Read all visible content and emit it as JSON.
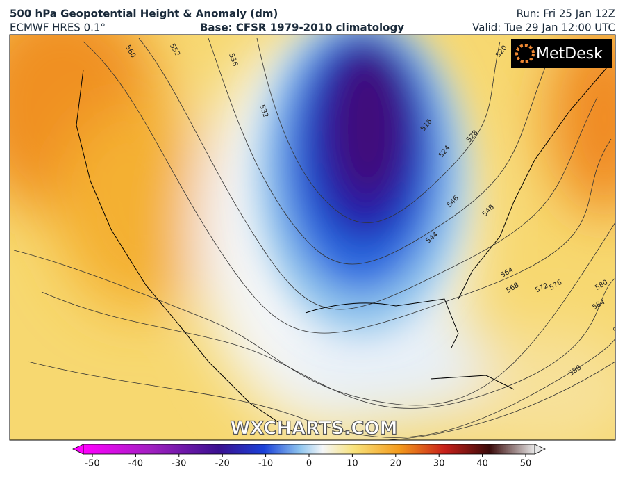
{
  "header": {
    "title": "500 hPa Geopotential Height & Anomaly (dm)",
    "model": "ECMWF HRES 0.1°",
    "base": "Base: CFSR 1979-2010 climatology",
    "run": "Run: Fri 25 Jan 12Z",
    "valid": "Valid: Tue 29 Jan 12:00 UTC"
  },
  "logo": "MetDesk",
  "watermark": "WXCHARTS.COM",
  "contour_labels": [
    "560",
    "552",
    "536",
    "532",
    "516",
    "524",
    "528",
    "520",
    "546",
    "548",
    "544",
    "564",
    "568",
    "572",
    "576",
    "580",
    "584",
    "588"
  ],
  "colorbar": {
    "range": [
      -50,
      50
    ],
    "ticks": [
      -50,
      -40,
      -30,
      -20,
      -10,
      0,
      10,
      20,
      30,
      40,
      50
    ]
  }
}
